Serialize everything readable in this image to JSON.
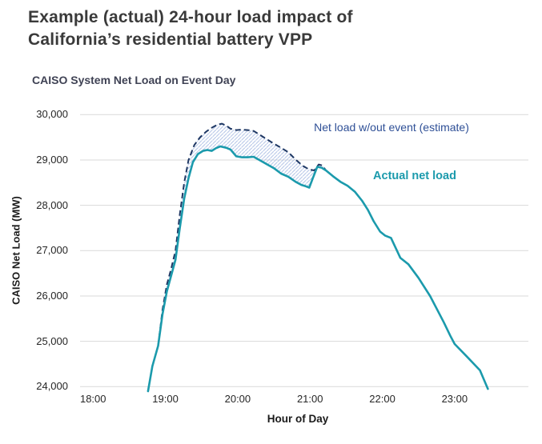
{
  "page": {
    "title_line1": "Example (actual) 24-hour load impact of",
    "title_line2": "California’s residential battery VPP"
  },
  "chart_data": {
    "type": "line",
    "title": "CAISO System Net Load on Event Day",
    "xlabel": "Hour of Day",
    "ylabel": "CAISO Net Load (MW)",
    "xlim": [
      17.82,
      24.02
    ],
    "ylim": [
      24000,
      30000
    ],
    "grid": "horizontal-only",
    "grid_color": "#d9d9d9",
    "legend_position": "inline text annotations near lines",
    "x_ticks": [
      {
        "value": 18,
        "label": "18:00"
      },
      {
        "value": 19,
        "label": "19:00"
      },
      {
        "value": 20,
        "label": "20:00"
      },
      {
        "value": 21,
        "label": "21:00"
      },
      {
        "value": 22,
        "label": "22:00"
      },
      {
        "value": 23,
        "label": "23:00"
      }
    ],
    "y_ticks": [
      {
        "value": 24000,
        "label": "24,000"
      },
      {
        "value": 25000,
        "label": "25,000"
      },
      {
        "value": 26000,
        "label": "26,000"
      },
      {
        "value": 27000,
        "label": "27,000"
      },
      {
        "value": 28000,
        "label": "28,000"
      },
      {
        "value": 29000,
        "label": "29,000"
      },
      {
        "value": 30000,
        "label": "30,000"
      }
    ],
    "series": [
      {
        "name": "Net load w/out event (estimate)",
        "style": "dashed",
        "color": "#1f3864",
        "points": [
          [
            18.9,
            24900
          ],
          [
            18.96,
            25700
          ],
          [
            19.02,
            26250
          ],
          [
            19.08,
            26600
          ],
          [
            19.14,
            27000
          ],
          [
            19.2,
            27800
          ],
          [
            19.26,
            28500
          ],
          [
            19.32,
            29000
          ],
          [
            19.4,
            29330
          ],
          [
            19.48,
            29500
          ],
          [
            19.56,
            29620
          ],
          [
            19.64,
            29710
          ],
          [
            19.72,
            29780
          ],
          [
            19.78,
            29800
          ],
          [
            19.84,
            29760
          ],
          [
            19.9,
            29690
          ],
          [
            19.98,
            29660
          ],
          [
            20.06,
            29670
          ],
          [
            20.14,
            29660
          ],
          [
            20.22,
            29640
          ],
          [
            20.3,
            29560
          ],
          [
            20.4,
            29460
          ],
          [
            20.5,
            29360
          ],
          [
            20.6,
            29270
          ],
          [
            20.7,
            29170
          ],
          [
            20.8,
            29010
          ],
          [
            20.9,
            28870
          ],
          [
            20.99,
            28790
          ],
          [
            21.06,
            28770
          ],
          [
            21.12,
            28900
          ],
          [
            21.17,
            28880
          ],
          [
            21.22,
            28770
          ]
        ]
      },
      {
        "name": "Actual net load",
        "style": "solid",
        "color": "#1b9aac",
        "points": [
          [
            18.76,
            23900
          ],
          [
            18.82,
            24450
          ],
          [
            18.9,
            24900
          ],
          [
            18.96,
            25600
          ],
          [
            19.02,
            26100
          ],
          [
            19.08,
            26450
          ],
          [
            19.14,
            26800
          ],
          [
            19.2,
            27500
          ],
          [
            19.26,
            28150
          ],
          [
            19.32,
            28600
          ],
          [
            19.38,
            28950
          ],
          [
            19.45,
            29130
          ],
          [
            19.52,
            29200
          ],
          [
            19.58,
            29220
          ],
          [
            19.64,
            29200
          ],
          [
            19.7,
            29260
          ],
          [
            19.76,
            29300
          ],
          [
            19.84,
            29270
          ],
          [
            19.9,
            29230
          ],
          [
            19.98,
            29080
          ],
          [
            20.06,
            29060
          ],
          [
            20.14,
            29060
          ],
          [
            20.22,
            29070
          ],
          [
            20.3,
            29000
          ],
          [
            20.4,
            28910
          ],
          [
            20.5,
            28820
          ],
          [
            20.6,
            28700
          ],
          [
            20.7,
            28630
          ],
          [
            20.8,
            28520
          ],
          [
            20.88,
            28450
          ],
          [
            20.94,
            28420
          ],
          [
            20.99,
            28390
          ],
          [
            21.04,
            28600
          ],
          [
            21.1,
            28850
          ],
          [
            21.16,
            28830
          ],
          [
            21.22,
            28770
          ],
          [
            21.32,
            28640
          ],
          [
            21.42,
            28520
          ],
          [
            21.52,
            28430
          ],
          [
            21.62,
            28300
          ],
          [
            21.72,
            28100
          ],
          [
            21.8,
            27900
          ],
          [
            21.88,
            27650
          ],
          [
            21.97,
            27420
          ],
          [
            22.04,
            27330
          ],
          [
            22.12,
            27280
          ],
          [
            22.25,
            26840
          ],
          [
            22.36,
            26700
          ],
          [
            22.5,
            26400
          ],
          [
            22.66,
            26000
          ],
          [
            22.85,
            25420
          ],
          [
            22.94,
            25120
          ],
          [
            23.0,
            24940
          ],
          [
            23.16,
            24680
          ],
          [
            23.35,
            24360
          ],
          [
            23.46,
            23950
          ]
        ]
      }
    ],
    "band": {
      "description": "hatched area between estimate and actual lines during event",
      "hatch_color": "#b7c7e8",
      "range_hours": [
        18.9,
        21.22
      ]
    },
    "annotations": [
      {
        "text": "Net load w/out event (estimate)",
        "color": "#2e4f96",
        "near": "dashed line, upper right"
      },
      {
        "text": "Actual net load",
        "color": "#1b9aac",
        "near": "solid line, right of peak"
      }
    ]
  }
}
